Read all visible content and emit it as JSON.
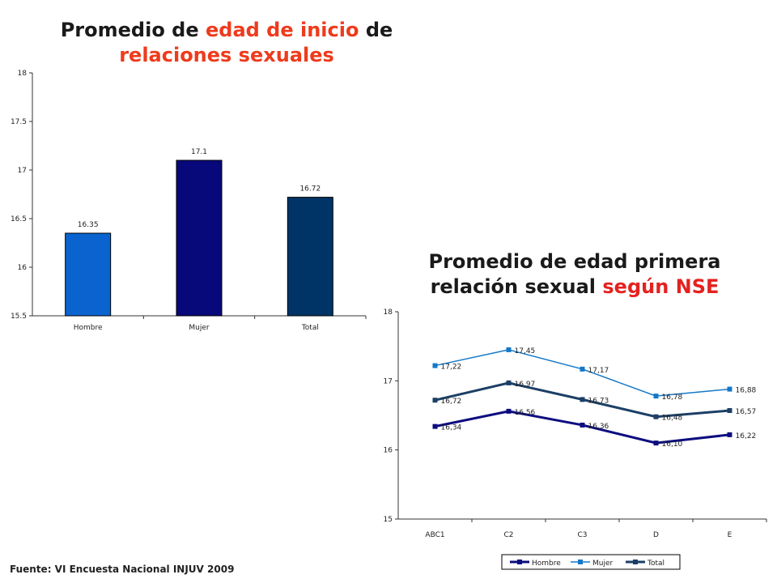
{
  "titles": {
    "left": {
      "part1": "Promedio de ",
      "highlight": "edad de inicio",
      "part2": " de",
      "line2": "relaciones sexuales"
    },
    "right": {
      "line1": "Promedio de edad primera",
      "part1": "relación sexual ",
      "highlight": "según NSE"
    }
  },
  "source": "Fuente: VI Encuesta Nacional INJUV 2009",
  "chart_data": [
    {
      "type": "bar",
      "title": "Promedio de edad de inicio de relaciones sexuales",
      "categories": [
        "Hombre",
        "Mujer",
        "Total"
      ],
      "values": [
        16.35,
        17.1,
        16.72
      ],
      "labels": [
        "16.35",
        "17.1",
        "16.72"
      ],
      "colors": [
        "#0a63cf",
        "#07087a",
        "#003466"
      ],
      "ylim": [
        15.5,
        18
      ],
      "yticks": [
        "15.5",
        "16",
        "16.5",
        "17",
        "17.5",
        "18"
      ],
      "legend": "none",
      "grid": false
    },
    {
      "type": "line",
      "title": "Promedio de edad primera relación sexual según NSE",
      "categories": [
        "ABC1",
        "C2",
        "C3",
        "D",
        "E"
      ],
      "series": [
        {
          "name": "Hombre",
          "values": [
            16.34,
            16.56,
            16.36,
            16.1,
            16.22
          ],
          "labels": [
            "16,34",
            "16,56",
            "16,36",
            "16,10",
            "16,22"
          ],
          "color": "#0d0d80"
        },
        {
          "name": "Mujer",
          "values": [
            17.22,
            17.45,
            17.17,
            16.78,
            16.88
          ],
          "labels": [
            "17,22",
            "17,45",
            "17,17",
            "16,78",
            "16,88"
          ],
          "color": "#1478c8"
        },
        {
          "name": "Total",
          "values": [
            16.72,
            16.97,
            16.73,
            16.48,
            16.57
          ],
          "labels": [
            "16,72",
            "16,97",
            "16,73",
            "16,48",
            "16,57"
          ],
          "color": "#1c3f66"
        }
      ],
      "ylim": [
        15,
        18
      ],
      "yticks": [
        "15",
        "16",
        "17",
        "18"
      ],
      "legend": "bottom",
      "grid": false
    }
  ]
}
